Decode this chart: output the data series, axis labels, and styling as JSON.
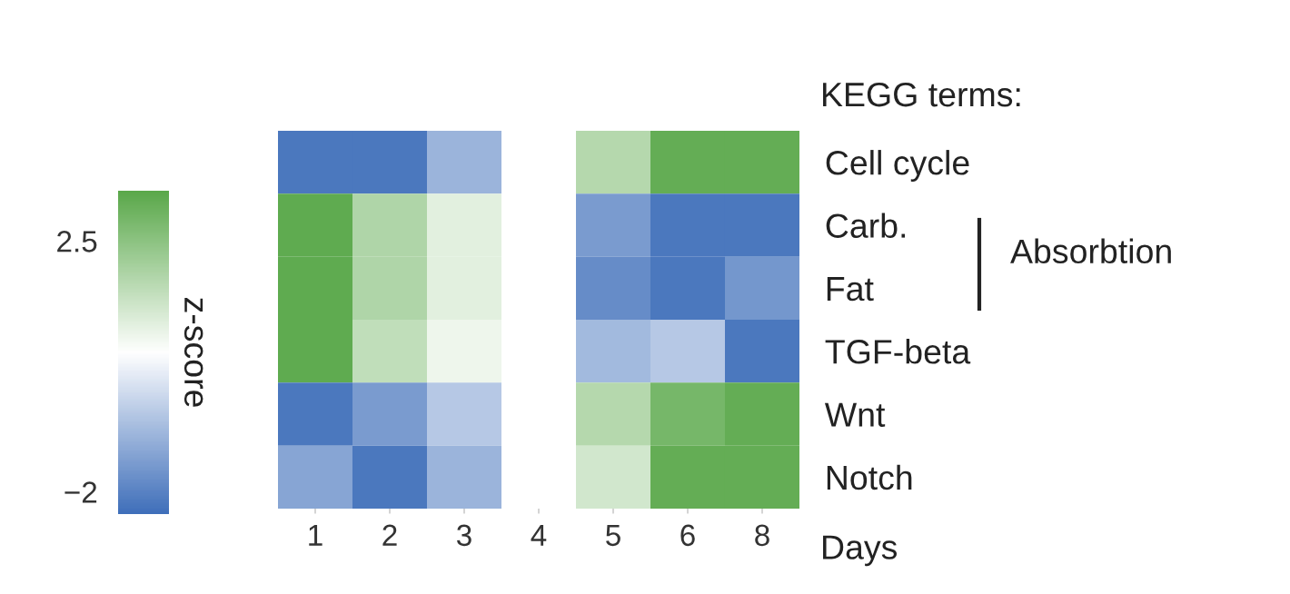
{
  "chart_data": {
    "type": "heatmap",
    "xlabel": "Days",
    "ylabel": "KEGG terms:",
    "clabel": "z-score",
    "categories": [
      "1",
      "2",
      "3",
      "4",
      "5",
      "6",
      "8"
    ],
    "y_categories": [
      "Cell cycle",
      "Carb.",
      "Fat",
      "TGF-beta",
      "Wnt",
      "Notch"
    ],
    "cells": [
      [
        -2.2,
        -2.2,
        -1.0,
        null,
        1.8,
        3.2,
        3.2
      ],
      [
        3.3,
        1.9,
        1.0,
        null,
        -1.5,
        -2.2,
        -2.2
      ],
      [
        3.3,
        1.9,
        1.0,
        null,
        -1.8,
        -2.2,
        -1.6
      ],
      [
        3.3,
        1.6,
        0.8,
        null,
        -0.9,
        -0.6,
        -2.2
      ],
      [
        -2.2,
        -1.5,
        -0.6,
        null,
        1.8,
        2.9,
        3.2
      ],
      [
        -1.3,
        -2.2,
        -1.0,
        null,
        1.3,
        3.2,
        3.2
      ]
    ],
    "colors": [
      "#3f6fba",
      "#ffffff",
      "#5aa84a"
    ],
    "clim": [
      -2.4,
      3.4
    ],
    "cticks": [
      2.5,
      {
        "value": -2,
        "label": "−2"
      }
    ],
    "annotations": [
      "Absorbtion"
    ]
  }
}
